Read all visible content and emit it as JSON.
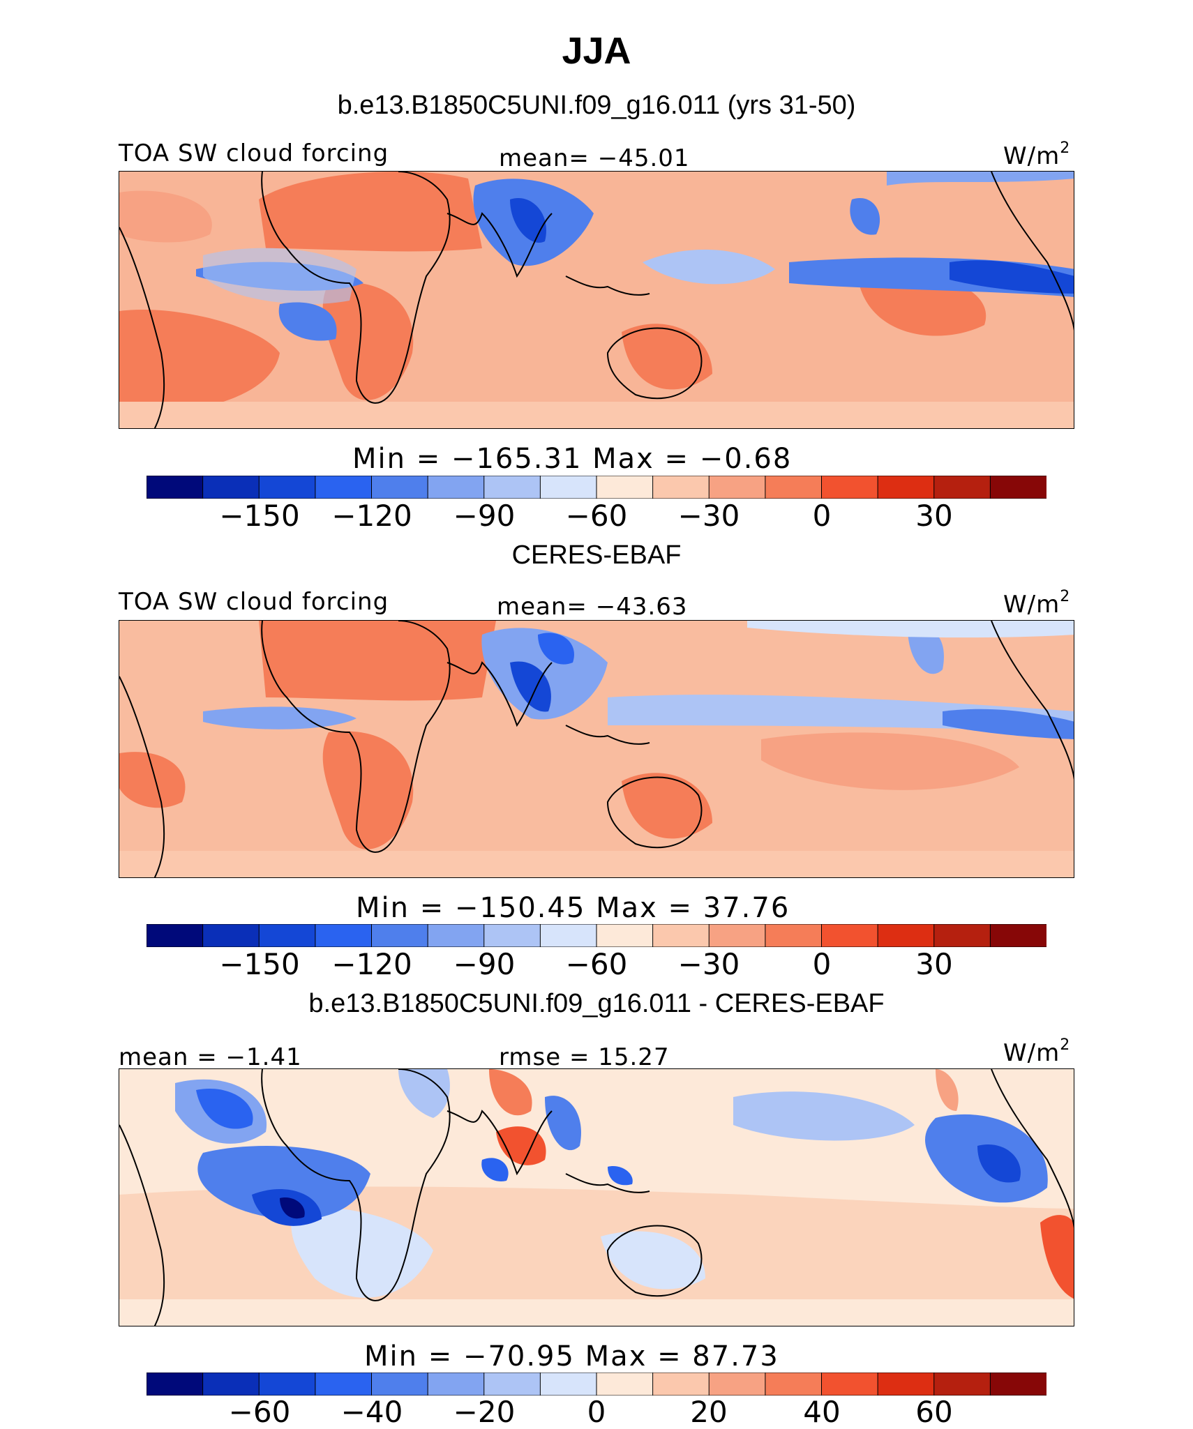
{
  "title": "JJA",
  "units_label": "W/m",
  "units_exp": "2",
  "panels": [
    {
      "heading": "b.e13.B1850C5UNI.f09_g16.011 (yrs 31-50)",
      "variable": "TOA SW cloud forcing",
      "mean_label": "mean= −45.01",
      "minmax_label": "Min  =  −165.31  Max  =    −0.68",
      "ticks": [
        "−150",
        "−120",
        "−90",
        "−60",
        "−30",
        "0",
        "30"
      ]
    },
    {
      "heading": "CERES-EBAF",
      "variable": "TOA SW cloud forcing",
      "mean_label": "mean= −43.63",
      "minmax_label": "Min  =  −150.45  Max  =    37.76",
      "ticks": [
        "−150",
        "−120",
        "−90",
        "−60",
        "−30",
        "0",
        "30"
      ]
    },
    {
      "heading": "b.e13.B1850C5UNI.f09_g16.011 - CERES-EBAF",
      "mean_label": "mean  =   −1.41",
      "rmse_label": "rmse  =   15.27",
      "minmax_label": "Min  =  −70.95  Max  =   87.73",
      "ticks": [
        "−60",
        "−40",
        "−20",
        "0",
        "20",
        "40",
        "60"
      ]
    }
  ],
  "colorbar": {
    "colors": [
      "#00097a",
      "#0a2fb8",
      "#1447d6",
      "#2a63f0",
      "#4f7fec",
      "#82a4f1",
      "#adc4f5",
      "#d7e4fb",
      "#fde9d9",
      "#fbc8ad",
      "#f7a283",
      "#f57d58",
      "#f2522f",
      "#dd2e12",
      "#b5200f",
      "#870707"
    ]
  },
  "chart_data": [
    {
      "type": "heatmap",
      "title": "b.e13.B1850C5UNI.f09_g16.011 (yrs 31-50)",
      "variable": "TOA SW cloud forcing",
      "units": "W/m2",
      "season": "JJA",
      "mean": -45.01,
      "min": -165.31,
      "max": -0.68,
      "contour_levels": [
        -165,
        -150,
        -135,
        -120,
        -105,
        -90,
        -75,
        -60,
        -45,
        -30,
        -15,
        0,
        15,
        30,
        45
      ],
      "colorbar_ticks": [
        -150,
        -120,
        -90,
        -60,
        -30,
        0,
        30
      ]
    },
    {
      "type": "heatmap",
      "title": "CERES-EBAF",
      "variable": "TOA SW cloud forcing",
      "units": "W/m2",
      "season": "JJA",
      "mean": -43.63,
      "min": -150.45,
      "max": 37.76,
      "contour_levels": [
        -165,
        -150,
        -135,
        -120,
        -105,
        -90,
        -75,
        -60,
        -45,
        -30,
        -15,
        0,
        15,
        30,
        45
      ],
      "colorbar_ticks": [
        -150,
        -120,
        -90,
        -60,
        -30,
        0,
        30
      ]
    },
    {
      "type": "heatmap",
      "title": "b.e13.B1850C5UNI.f09_g16.011 - CERES-EBAF",
      "units": "W/m2",
      "season": "JJA",
      "mean": -1.41,
      "rmse": 15.27,
      "min": -70.95,
      "max": 87.73,
      "contour_levels": [
        -70,
        -60,
        -50,
        -40,
        -30,
        -20,
        -10,
        0,
        10,
        20,
        30,
        40,
        50,
        60,
        70
      ],
      "colorbar_ticks": [
        -60,
        -40,
        -20,
        0,
        20,
        40,
        60
      ]
    }
  ]
}
